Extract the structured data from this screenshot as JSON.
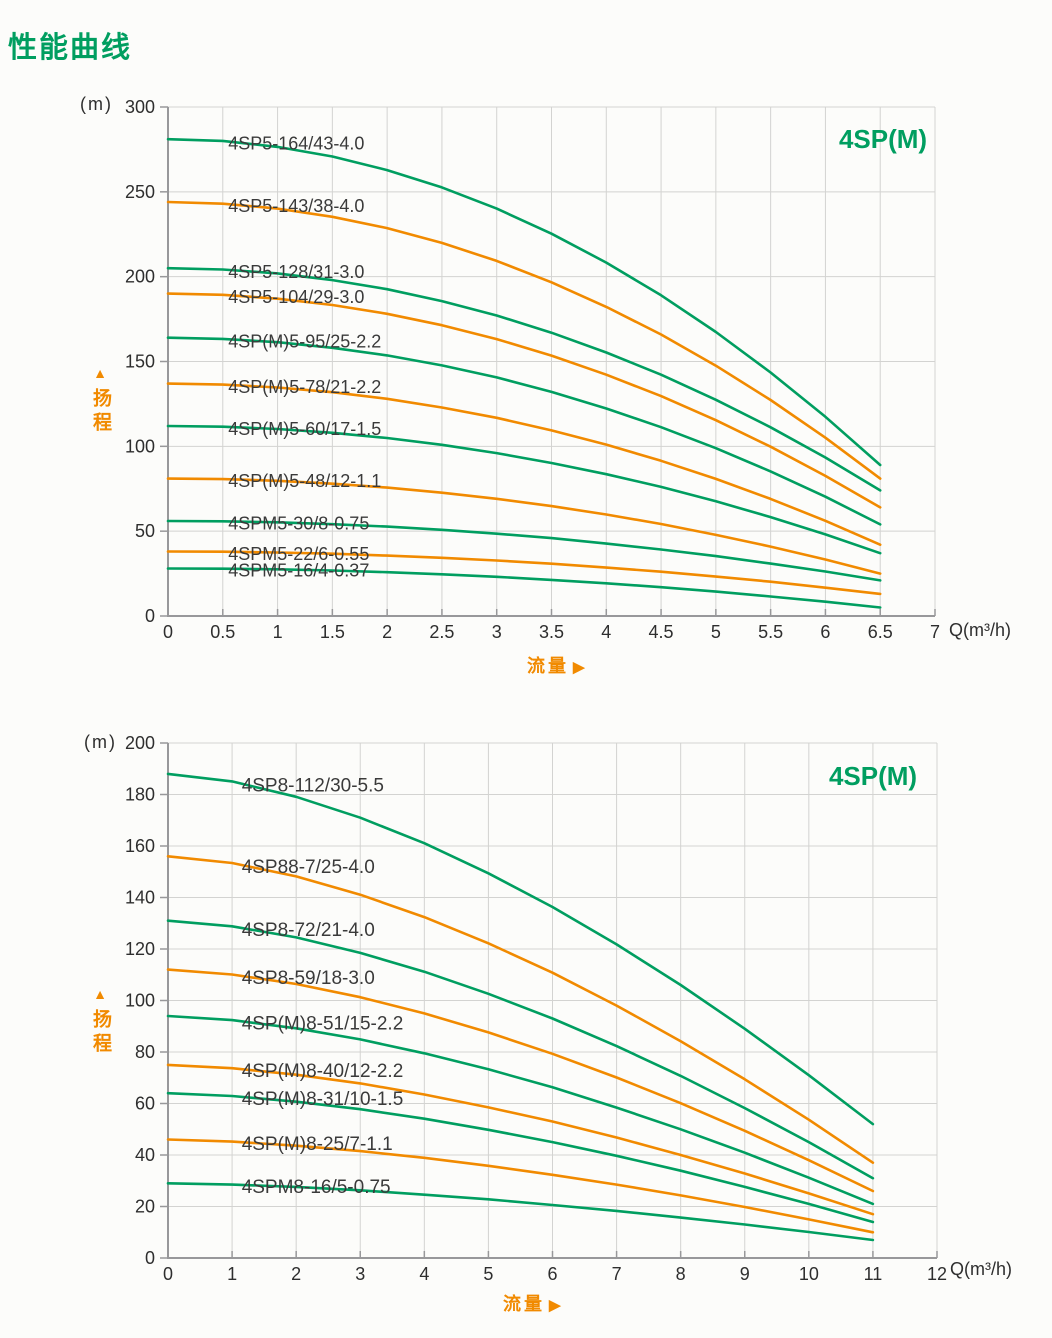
{
  "page": {
    "heading": "性能曲线",
    "colors": {
      "green": "#009E60",
      "orange": "#F18A00",
      "text": "#2e2e2e",
      "grid": "#d3d3d1",
      "axis": "#98989a"
    }
  },
  "charts": [
    {
      "title": "4SP(M)",
      "unit_label": "(m)",
      "y_axis_label": {
        "arrow": "▲",
        "text": "扬程"
      },
      "x_axis_label": {
        "text": "流量",
        "arrow": "▶"
      },
      "x_unit": "Q(m³/h)",
      "chart_data": {
        "type": "line",
        "title": "4SP(M)",
        "xlabel": "流量 Q(m³/h)",
        "ylabel": "扬程 (m)",
        "xlim": [
          0,
          7
        ],
        "ylim": [
          0,
          300
        ],
        "x_tick_step": 0.5,
        "y_tick_step": 50,
        "grid": true,
        "legend_position": "inline-labels",
        "label_x": 0.55,
        "x": [
          0,
          0.5,
          1,
          1.5,
          2,
          2.5,
          3,
          3.5,
          4,
          4.5,
          5,
          5.5,
          6,
          6.5
        ],
        "series": [
          {
            "name": "4SP5-164/43-4.0",
            "color": "green",
            "values": [
              281,
              280,
              276.5,
              270.8,
              262.8,
              252.6,
              240.1,
              225.3,
              208.3,
              189,
              167.4,
              143.5,
              117.4,
              89
            ]
          },
          {
            "name": "4SP5-143/38-4.0",
            "color": "orange",
            "values": [
              244,
              243,
              240.1,
              235.3,
              228.6,
              219.9,
              209.3,
              196.7,
              182.2,
              165.9,
              147.5,
              127.3,
              105.1,
              81
            ]
          },
          {
            "name": "4SP5-128/31-3.0",
            "color": "green",
            "values": [
              205,
              204.2,
              201.9,
              198,
              192.6,
              185.6,
              177.1,
              167,
              155.3,
              142.2,
              127.4,
              111.2,
              93.4,
              74
            ]
          },
          {
            "name": "4SP5-104/29-3.0",
            "color": "orange",
            "values": [
              190,
              189.3,
              187,
              183.3,
              178.1,
              171.4,
              163.2,
              153.5,
              142.2,
              129.6,
              115.4,
              99.8,
              82.6,
              64
            ]
          },
          {
            "name": "4SP(M)5-95/25-2.2",
            "color": "green",
            "values": [
              164,
              163.3,
              161.4,
              158.1,
              153.6,
              147.7,
              140.6,
              132.1,
              122.3,
              111.3,
              98.9,
              85.2,
              70.3,
              54
            ]
          },
          {
            "name": "4SP(M)5-78/21-2.2",
            "color": "orange",
            "values": [
              137,
              136.4,
              134.7,
              131.9,
              128,
              122.9,
              116.8,
              109.4,
              101,
              91.5,
              80.8,
              69,
              56.1,
              42
            ]
          },
          {
            "name": "4SP(M)5-60/17-1.5",
            "color": "green",
            "values": [
              112,
              111.6,
              110.2,
              108,
              104.9,
              100.9,
              96,
              90.2,
              83.6,
              76.1,
              67.6,
              58.3,
              48.1,
              37
            ]
          },
          {
            "name": "4SP(M)5-48/12-1.1",
            "color": "orange",
            "values": [
              81,
              80.7,
              79.7,
              78,
              75.7,
              72.7,
              69.1,
              64.8,
              59.8,
              54.2,
              47.8,
              40.9,
              33.3,
              25
            ]
          },
          {
            "name": "4SPM5-30/8-0.75",
            "color": "green",
            "values": [
              56,
              55.8,
              55.2,
              54.1,
              52.7,
              50.8,
              48.5,
              45.9,
              42.7,
              39.2,
              35.3,
              30.9,
              26.2,
              21
            ]
          },
          {
            "name": "4SPM5-22/6-0.55",
            "color": "orange",
            "values": [
              38,
              37.9,
              37.4,
              36.7,
              35.6,
              34.3,
              32.7,
              30.8,
              28.5,
              26.1,
              23.2,
              20.2,
              16.7,
              13
            ]
          },
          {
            "name": "4SPM5-16/4-0.37",
            "color": "green",
            "values": [
              28,
              27.9,
              27.5,
              26.8,
              25.8,
              24.6,
              23.1,
              21.3,
              19.3,
              17,
              14.4,
              11.5,
              8.4,
              5
            ]
          }
        ]
      }
    },
    {
      "title": "4SP(M)",
      "unit_label": "(m)",
      "y_axis_label": {
        "arrow": "▲",
        "text": "扬程"
      },
      "x_axis_label": {
        "text": "流量",
        "arrow": "▶"
      },
      "x_unit": "Q(m³/h)",
      "chart_data": {
        "type": "line",
        "title": "4SP(M)",
        "xlabel": "流量 Q(m³/h)",
        "ylabel": "扬程 (m)",
        "xlim": [
          0,
          12
        ],
        "ylim": [
          0,
          200
        ],
        "x_tick_step": 1,
        "y_tick_step": 20,
        "grid": true,
        "legend_position": "inline-labels",
        "label_x": 1.15,
        "x": [
          0,
          1,
          2,
          3,
          4,
          5,
          6,
          7,
          8,
          9,
          10,
          11
        ],
        "series": [
          {
            "name": "4SP8-112/30-5.5",
            "color": "green",
            "values": [
              188,
              185.1,
              179.1,
              171,
              161.1,
              149.4,
              136.3,
              121.8,
              106,
              89,
              71,
              52
            ]
          },
          {
            "name": "4SP88-7/25-4.0",
            "color": "orange",
            "values": [
              156,
              153.4,
              148.2,
              141.1,
              132.4,
              122.2,
              110.8,
              98,
              84.2,
              69.4,
              53.7,
              37
            ]
          },
          {
            "name": "4SP8-72/21-4.0",
            "color": "green",
            "values": [
              131,
              128.8,
              124.5,
              118.5,
              111.2,
              102.6,
              93,
              82.3,
              70.7,
              58.2,
              45,
              31
            ]
          },
          {
            "name": "4SP8-59/18-3.0",
            "color": "orange",
            "values": [
              112,
              110.1,
              106.4,
              101.3,
              95,
              87.6,
              79.3,
              70.1,
              60.1,
              49.4,
              38,
              26
            ]
          },
          {
            "name": "4SP(M)8-51/15-2.2",
            "color": "green",
            "values": [
              94,
              92.4,
              89.2,
              84.9,
              79.5,
              73.3,
              66.3,
              58.4,
              50,
              40.9,
              31.2,
              21
            ]
          },
          {
            "name": "4SP(M)8-40/12-2.2",
            "color": "orange",
            "values": [
              75,
              73.7,
              71.2,
              67.8,
              63.5,
              58.5,
              53,
              46.8,
              40,
              32.8,
              25.1,
              17
            ]
          },
          {
            "name": "4SP(M)8-31/10-1.5",
            "color": "green",
            "values": [
              64,
              62.9,
              60.7,
              57.8,
              54.1,
              49.8,
              45,
              39.7,
              33.9,
              27.6,
              21,
              14
            ]
          },
          {
            "name": "4SP(M)8-25/7-1.1",
            "color": "orange",
            "values": [
              46,
              45.2,
              43.6,
              41.5,
              38.9,
              35.8,
              32.3,
              28.5,
              24.3,
              19.8,
              15,
              10
            ]
          },
          {
            "name": "4SPM8-16/5-0.75",
            "color": "green",
            "values": [
              29,
              28.5,
              27.6,
              26.3,
              24.6,
              22.8,
              20.6,
              18.3,
              15.7,
              13,
              10.1,
              7
            ]
          }
        ]
      }
    }
  ]
}
